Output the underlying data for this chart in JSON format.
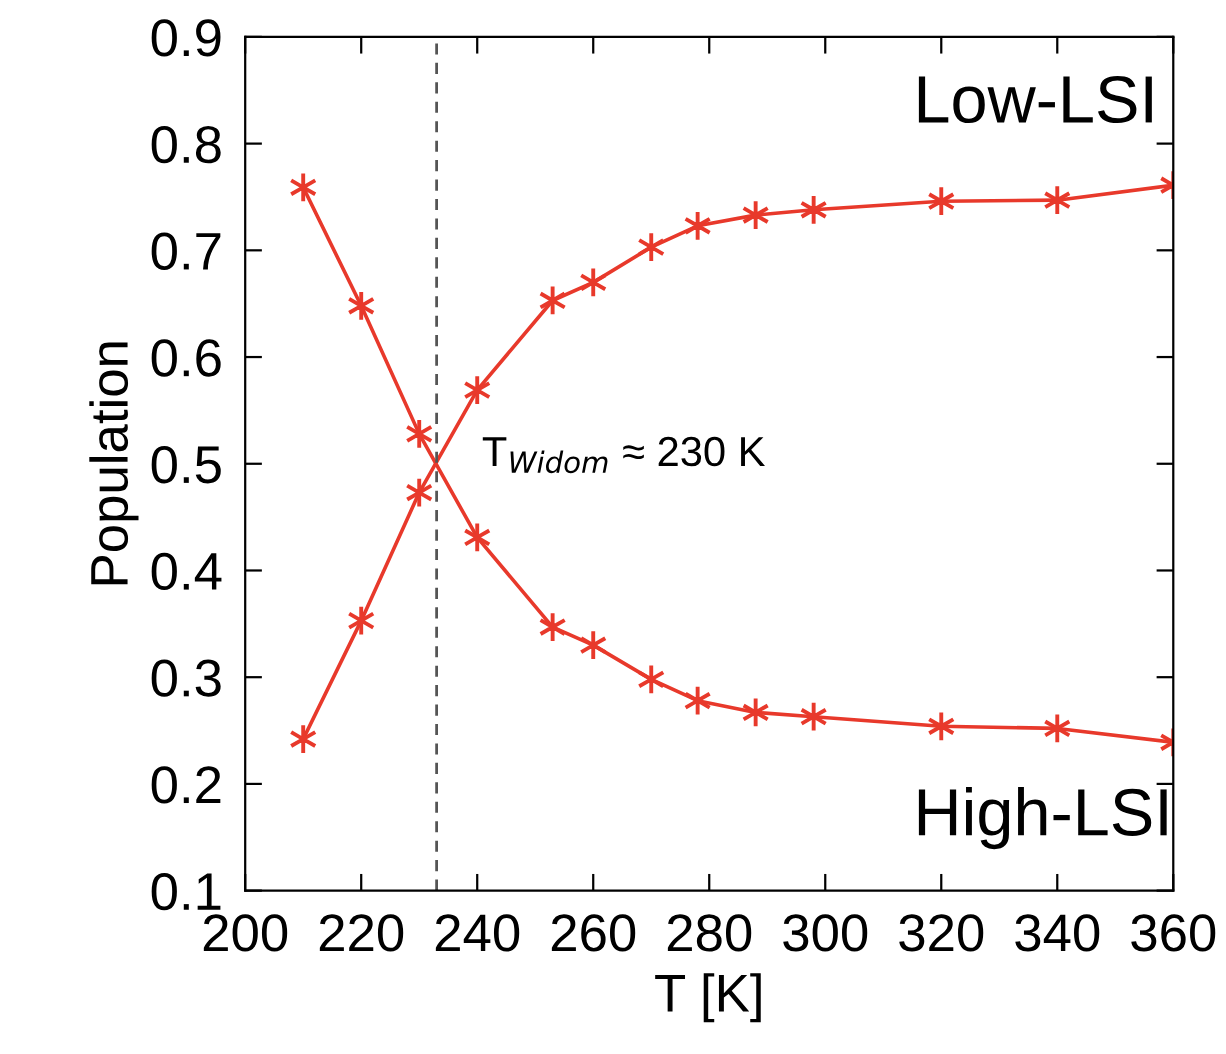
{
  "chart_data": {
    "type": "line",
    "xlabel": "T [K]",
    "ylabel": "Population",
    "x": [
      210,
      220,
      230,
      240,
      253,
      260,
      270,
      278,
      288,
      298,
      320,
      340,
      360
    ],
    "series": [
      {
        "color": "#e8392b",
        "values": [
          0.759,
          0.648,
          0.528,
          0.431,
          0.347,
          0.33,
          0.298,
          0.278,
          0.267,
          0.263,
          0.254,
          0.252,
          0.239
        ]
      },
      {
        "color": "#e8392b",
        "values": [
          0.242,
          0.353,
          0.473,
          0.569,
          0.653,
          0.67,
          0.703,
          0.723,
          0.733,
          0.738,
          0.746,
          0.747,
          0.761
        ]
      }
    ],
    "marker": "cross",
    "line_style": "solid",
    "grid": false,
    "legend": false,
    "xlim": [
      200,
      360
    ],
    "xticks": [
      200,
      220,
      240,
      260,
      280,
      300,
      320,
      340,
      360
    ],
    "ylim": [
      0.1,
      0.9
    ],
    "yticks": [
      0.1,
      0.2,
      0.3,
      0.4,
      0.5,
      0.6,
      0.7,
      0.8,
      0.9
    ],
    "ref_lines": [
      {
        "axis": "x",
        "value": 233,
        "color": "#555555",
        "line_style": "dashed"
      }
    ],
    "annotations": [
      "T$_{Widom}$ ≈ 230 K",
      "Low-LSI",
      "High-LSI"
    ]
  }
}
